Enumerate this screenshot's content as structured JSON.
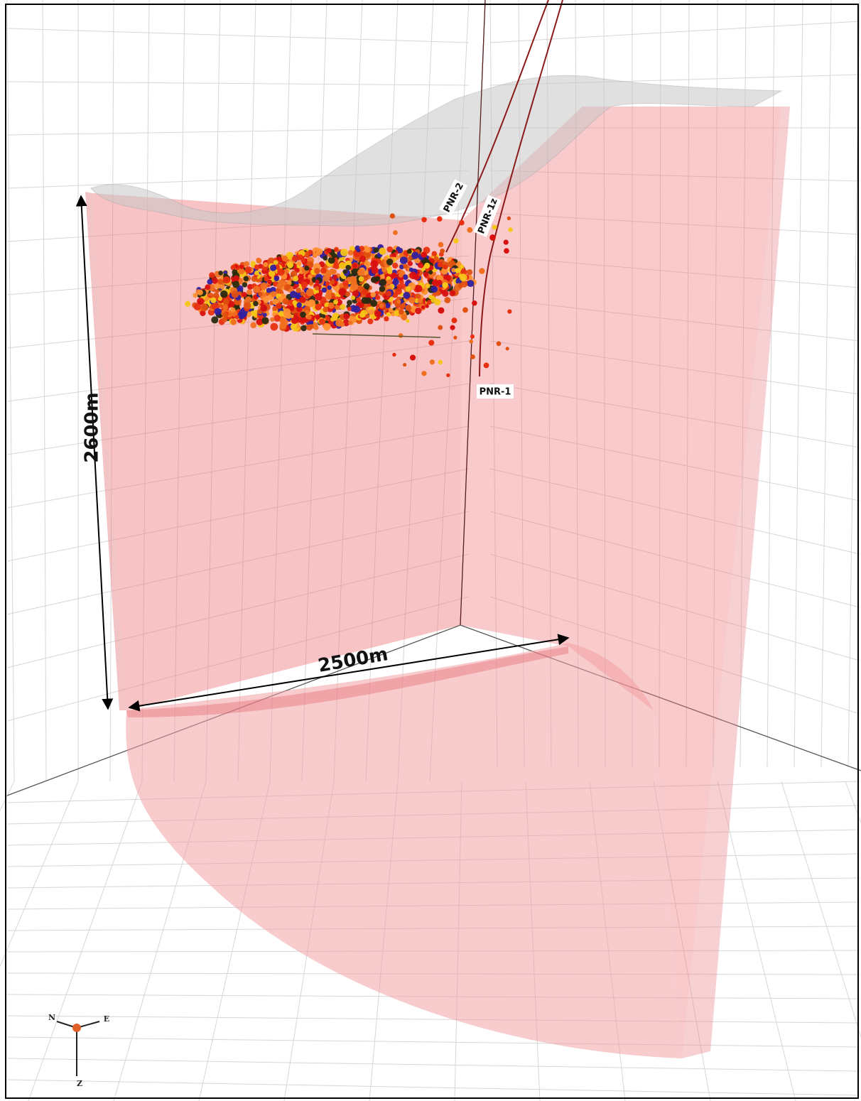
{
  "dimension_labels": {
    "height": "2600m",
    "width": "2500m"
  },
  "wells": [
    {
      "label": "PNR-2"
    },
    {
      "label": "PNR-1z"
    },
    {
      "label": "PNR-1"
    }
  ],
  "compass": {
    "north": "N",
    "east": "E",
    "down": "Z"
  }
}
